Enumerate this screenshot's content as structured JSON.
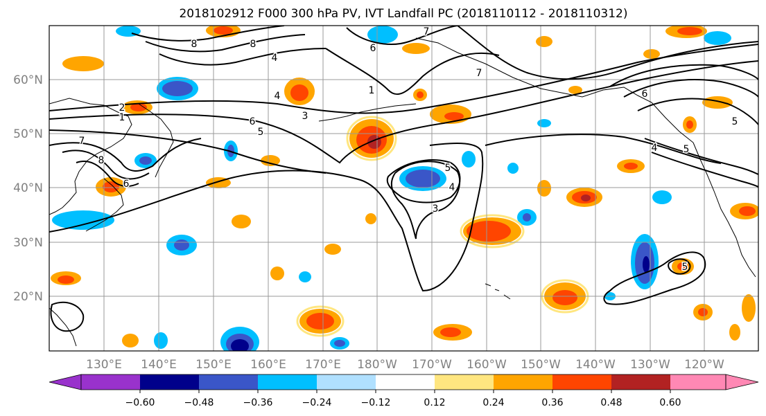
{
  "title": "2018102912 F000 300 hPa PV, IVT Landfall PC (2018110112 - 2018110312)",
  "lon_ticks": [
    "130°E",
    "140°E",
    "150°E",
    "160°E",
    "170°E",
    "180°W",
    "170°W",
    "160°W",
    "150°W",
    "140°W",
    "130°W",
    "120°W"
  ],
  "lat_ticks": [
    "60°N",
    "50°N",
    "40°N",
    "30°N",
    "20°N"
  ],
  "colorbar": {
    "labels": [
      "−0.60",
      "−0.48",
      "−0.36",
      "−0.24",
      "−0.12",
      "0.12",
      "0.24",
      "0.36",
      "0.48",
      "0.60"
    ],
    "colors": [
      "#9932cc",
      "#00008b",
      "#3a56c8",
      "#00bfff",
      "#b0e0ff",
      "#ffffff",
      "#ffe680",
      "#ffa500",
      "#ff4500",
      "#b22222",
      "#ff88b4"
    ]
  },
  "contour_labels": [
    "8",
    "4",
    "8",
    "7",
    "1",
    "6",
    "7",
    "4",
    "5",
    "3",
    "2",
    "1",
    "8",
    "6",
    "5",
    "6",
    "5",
    "4",
    "3",
    "7",
    "6",
    "5",
    "4",
    "5"
  ],
  "colors": {
    "contour": "#000000",
    "coast": "#000000",
    "grid": "#999999"
  }
}
